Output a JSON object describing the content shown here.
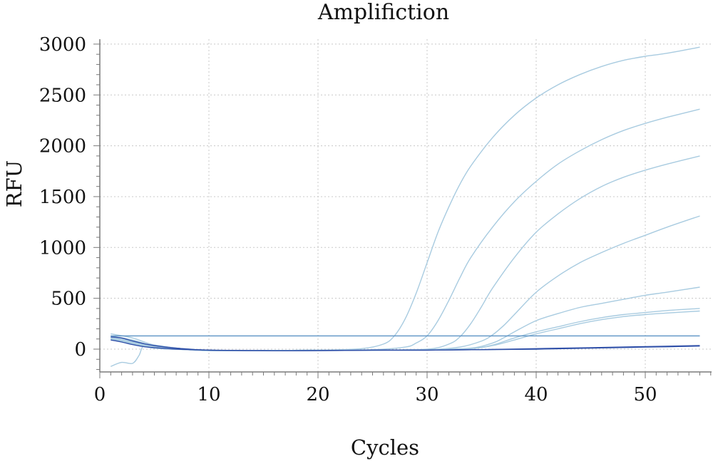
{
  "chart_data": {
    "type": "line",
    "title": "Amplifiction",
    "xlabel": "Cycles",
    "ylabel": "RFU",
    "xlim": [
      0,
      56
    ],
    "ylim": [
      -230,
      3050
    ],
    "xticks": [
      0,
      10,
      20,
      30,
      40,
      50
    ],
    "yticks": [
      0,
      500,
      1000,
      1500,
      2000,
      2500,
      3000
    ],
    "grid": true,
    "legend": "none",
    "threshold": 130,
    "colors": {
      "amplified": "#a8cbe0",
      "baseline": "#2f4fa8",
      "threshold": "#5b92c4",
      "axis": "#7a7a7a",
      "grid": "#c8c8c8"
    },
    "series": [
      {
        "x": [
          1,
          3,
          5,
          8,
          10,
          15,
          20,
          24,
          26,
          27,
          28,
          29,
          30,
          31,
          32,
          33,
          34,
          36,
          38,
          40,
          42,
          44,
          46,
          48,
          50,
          52,
          55
        ],
        "y": [
          150,
          110,
          40,
          0,
          -10,
          -15,
          -10,
          5,
          50,
          130,
          300,
          550,
          850,
          1150,
          1400,
          1620,
          1800,
          2080,
          2300,
          2470,
          2600,
          2700,
          2780,
          2840,
          2880,
          2910,
          2970
        ]
      },
      {
        "x": [
          1,
          3,
          5,
          8,
          10,
          15,
          20,
          25,
          28,
          29,
          30,
          31,
          32,
          33,
          34,
          36,
          38,
          40,
          42,
          44,
          46,
          48,
          50,
          52,
          55
        ],
        "y": [
          130,
          90,
          30,
          -5,
          -15,
          -15,
          -10,
          -5,
          20,
          60,
          130,
          280,
          480,
          700,
          900,
          1200,
          1450,
          1650,
          1820,
          1950,
          2060,
          2150,
          2220,
          2280,
          2360
        ]
      },
      {
        "x": [
          1,
          3,
          5,
          8,
          10,
          15,
          20,
          25,
          30,
          32,
          33,
          34,
          35,
          36,
          38,
          40,
          42,
          44,
          46,
          48,
          50,
          52,
          55
        ],
        "y": [
          120,
          80,
          20,
          -5,
          -15,
          -15,
          -10,
          -10,
          0,
          50,
          120,
          250,
          420,
          600,
          900,
          1150,
          1330,
          1480,
          1600,
          1690,
          1760,
          1820,
          1900
        ]
      },
      {
        "x": [
          1,
          3,
          5,
          8,
          10,
          15,
          20,
          25,
          30,
          33,
          35,
          36,
          37,
          38,
          40,
          42,
          44,
          46,
          48,
          50,
          52,
          55
        ],
        "y": [
          110,
          70,
          15,
          -5,
          -15,
          -15,
          -10,
          -10,
          -5,
          20,
          80,
          140,
          230,
          340,
          560,
          720,
          850,
          950,
          1040,
          1120,
          1200,
          1310
        ]
      },
      {
        "x": [
          1,
          3,
          5,
          8,
          10,
          15,
          20,
          25,
          30,
          34,
          36,
          37,
          38,
          40,
          42,
          44,
          46,
          48,
          50,
          52,
          55
        ],
        "y": [
          100,
          60,
          10,
          -5,
          -15,
          -15,
          -10,
          -10,
          -5,
          10,
          60,
          110,
          170,
          280,
          350,
          410,
          450,
          490,
          530,
          560,
          610
        ]
      },
      {
        "x": [
          1,
          3,
          5,
          8,
          10,
          15,
          20,
          25,
          30,
          34,
          36,
          38,
          40,
          42,
          44,
          46,
          48,
          50,
          52,
          55
        ],
        "y": [
          100,
          60,
          10,
          -5,
          -15,
          -15,
          -10,
          -10,
          -5,
          5,
          40,
          110,
          170,
          220,
          270,
          310,
          340,
          360,
          380,
          400
        ]
      },
      {
        "x": [
          1,
          3,
          5,
          8,
          10,
          15,
          20,
          25,
          30,
          34,
          36,
          38,
          40,
          42,
          44,
          46,
          48,
          50,
          52,
          55
        ],
        "y": [
          95,
          55,
          10,
          -5,
          -15,
          -15,
          -10,
          -10,
          -5,
          5,
          35,
          90,
          150,
          200,
          250,
          290,
          320,
          340,
          355,
          375
        ]
      },
      {
        "x": [
          1,
          2,
          3,
          3.6,
          4,
          5,
          7,
          10,
          15,
          20,
          25,
          30,
          35,
          40,
          45,
          50,
          55
        ],
        "y": [
          -170,
          -130,
          -140,
          -60,
          30,
          40,
          10,
          -10,
          -15,
          -10,
          -10,
          -10,
          -5,
          0,
          10,
          20,
          30
        ]
      },
      {
        "x": [
          1,
          2,
          3,
          4,
          5,
          7,
          10,
          15,
          20,
          25,
          30,
          35,
          40,
          45,
          50,
          55
        ],
        "y": [
          120,
          110,
          80,
          55,
          35,
          10,
          -10,
          -15,
          -15,
          -10,
          -10,
          -5,
          0,
          10,
          20,
          30
        ]
      },
      {
        "x": [
          1,
          2,
          3,
          4,
          5,
          7,
          10,
          15,
          20,
          25,
          30,
          35,
          40,
          45,
          50,
          55
        ],
        "y": [
          90,
          70,
          45,
          25,
          15,
          0,
          -10,
          -15,
          -15,
          -10,
          -10,
          -5,
          5,
          15,
          25,
          35
        ]
      }
    ]
  }
}
